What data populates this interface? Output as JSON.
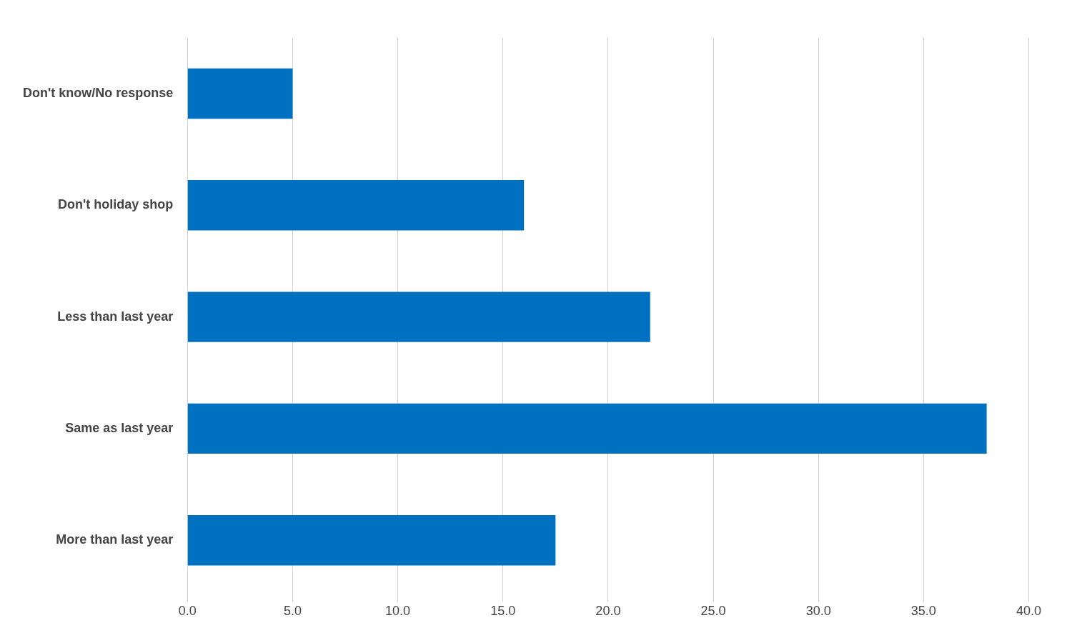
{
  "chart_data": {
    "type": "bar",
    "orientation": "horizontal",
    "categories": [
      "More than last year",
      "Same as last year",
      "Less than last year",
      "Don't holiday shop",
      "Don't know/No response"
    ],
    "values": [
      17.5,
      38.0,
      22.0,
      16.0,
      5.0
    ],
    "color": "#0070C0",
    "xlim": [
      0,
      40.0
    ],
    "xticks": [
      {
        "value": 0.0,
        "label": "0.0"
      },
      {
        "value": 5.0,
        "label": "5.0"
      },
      {
        "value": 10.0,
        "label": "10.0"
      },
      {
        "value": 15.0,
        "label": "15.0"
      },
      {
        "value": 20.0,
        "label": "20.0"
      },
      {
        "value": 25.0,
        "label": "25.0"
      },
      {
        "value": 30.0,
        "label": "30.0"
      },
      {
        "value": 35.0,
        "label": "35.0"
      },
      {
        "value": 40.0,
        "label": "40.0"
      }
    ],
    "grid": true
  }
}
